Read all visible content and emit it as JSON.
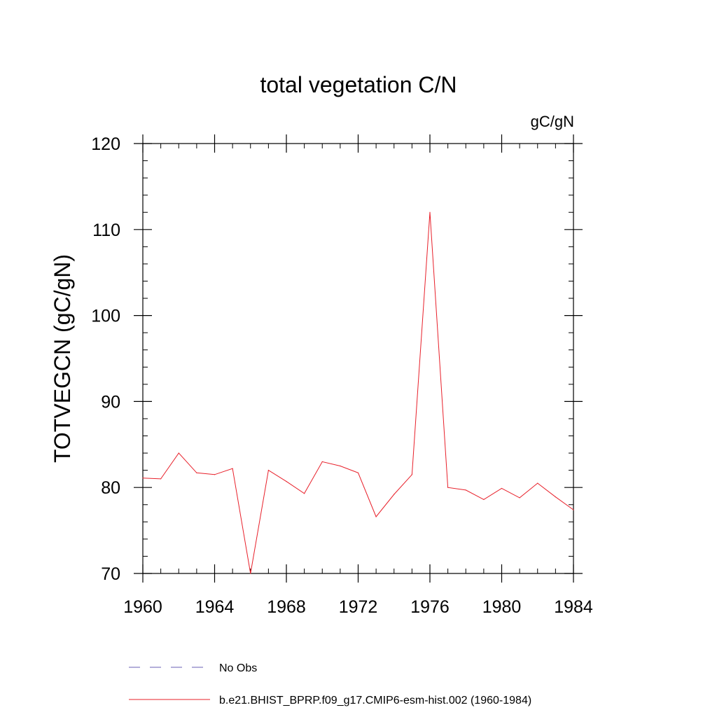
{
  "chart_data": {
    "type": "line",
    "title": "total vegetation C/N",
    "units_label": "gC/gN",
    "ylabel": "TOTVEGCN  (gC/gN)",
    "xlabel": "",
    "xlim": [
      1960,
      1984
    ],
    "ylim": [
      70,
      120
    ],
    "x_ticks": [
      1960,
      1964,
      1968,
      1972,
      1976,
      1980,
      1984
    ],
    "y_ticks": [
      70,
      80,
      90,
      100,
      110,
      120
    ],
    "grid": false,
    "legend_position": "bottom",
    "legend": [
      {
        "label": "No Obs",
        "color": "#6a5fb5",
        "style": "dashed"
      },
      {
        "label": "b.e21.BHIST_BPRP.f09_g17.CMIP6-esm-hist.002 (1960-1984)",
        "color": "#e8202a",
        "style": "solid"
      }
    ],
    "series": [
      {
        "name": "b.e21.BHIST_BPRP.f09_g17.CMIP6-esm-hist.002 (1960-1984)",
        "color": "#e8202a",
        "x": [
          1960,
          1961,
          1962,
          1963,
          1964,
          1965,
          1966,
          1967,
          1968,
          1969,
          1970,
          1971,
          1972,
          1973,
          1974,
          1975,
          1976,
          1977,
          1978,
          1979,
          1980,
          1981,
          1982,
          1983,
          1984
        ],
        "values": [
          81.1,
          81.0,
          84.0,
          81.7,
          81.5,
          82.2,
          70.0,
          82.0,
          80.7,
          79.3,
          83.0,
          82.5,
          81.7,
          76.6,
          79.2,
          81.5,
          112.0,
          80.0,
          79.7,
          78.6,
          79.9,
          78.8,
          80.5,
          78.9,
          77.4
        ]
      }
    ]
  }
}
